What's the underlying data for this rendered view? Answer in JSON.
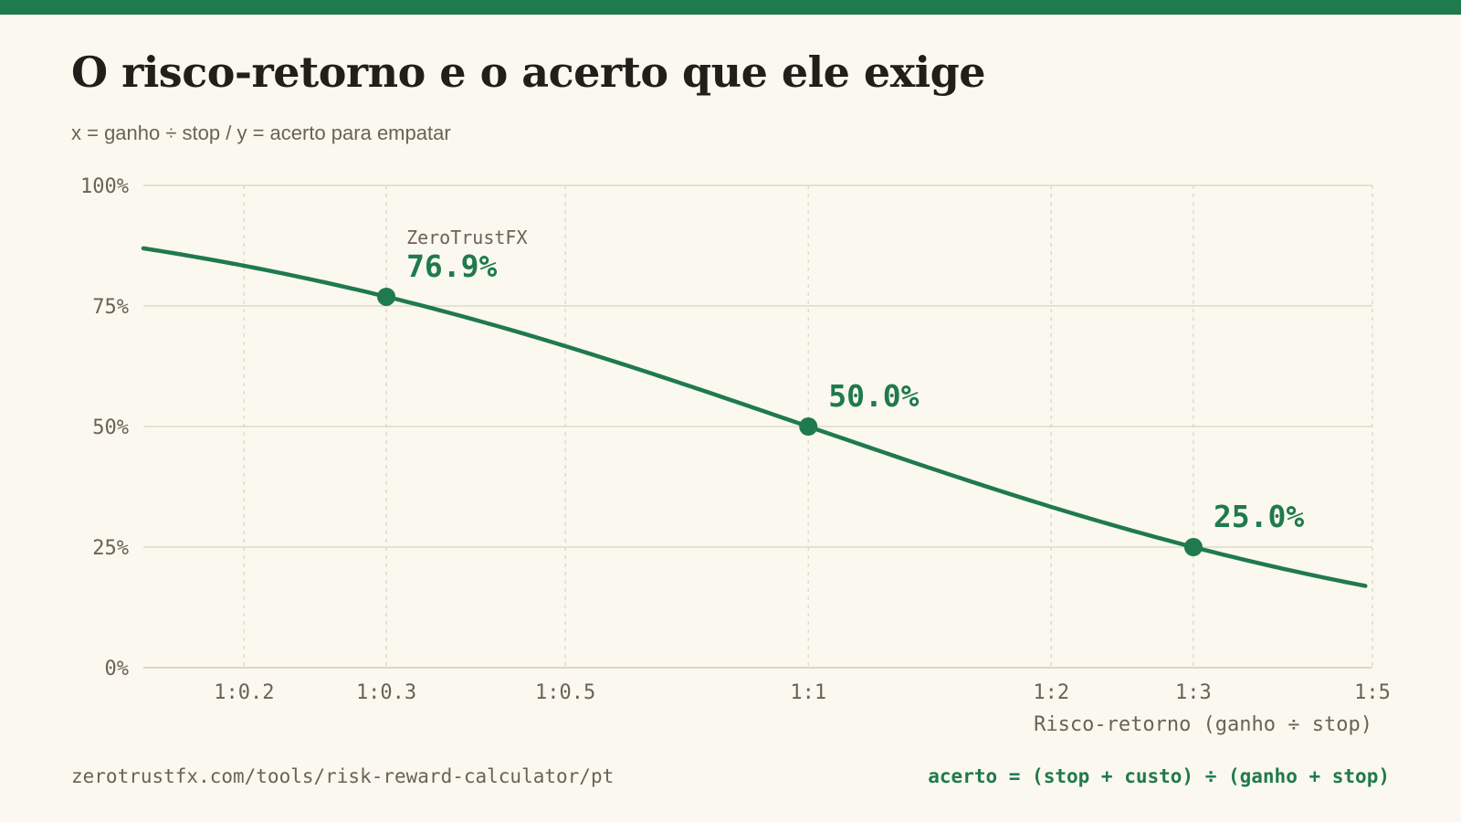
{
  "header": {
    "title": "O risco-retorno e o acerto que ele exige",
    "subtitle": "x = ganho ÷ stop / y = acerto para empatar"
  },
  "colors": {
    "accent": "#1f7a4d",
    "background": "#fbf8ef",
    "grid": "#d9d4c1",
    "text": "#221f1a",
    "muted": "#6b6256"
  },
  "chart_data": {
    "type": "line",
    "title": "",
    "xlabel": "Risco-retorno (ganho ÷ stop)",
    "ylabel": "",
    "x_scale": "log",
    "xlim": [
      0.15,
      5
    ],
    "ylim": [
      0,
      100
    ],
    "x_ticks": [
      {
        "value": 0.2,
        "label": "1:0.2"
      },
      {
        "value": 0.3,
        "label": "1:0.3"
      },
      {
        "value": 0.5,
        "label": "1:0.5"
      },
      {
        "value": 1,
        "label": "1:1"
      },
      {
        "value": 2,
        "label": "1:2"
      },
      {
        "value": 3,
        "label": "1:3"
      },
      {
        "value": 5,
        "label": "1:5"
      }
    ],
    "y_ticks": [
      {
        "value": 0,
        "label": "0%"
      },
      {
        "value": 25,
        "label": "25%"
      },
      {
        "value": 50,
        "label": "50%"
      },
      {
        "value": 75,
        "label": "75%"
      },
      {
        "value": 100,
        "label": "100%"
      }
    ],
    "grid": true,
    "series": [
      {
        "points": [
          [
            0.15,
            87.0
          ],
          [
            0.2,
            83.3
          ],
          [
            0.3,
            76.9
          ],
          [
            0.5,
            66.7
          ],
          [
            0.75,
            57.1
          ],
          [
            1,
            50.0
          ],
          [
            1.5,
            40.0
          ],
          [
            2,
            33.3
          ],
          [
            3,
            25.0
          ],
          [
            4,
            20.0
          ],
          [
            4.9,
            16.9
          ]
        ]
      }
    ],
    "highlights": [
      {
        "x": 0.3,
        "y": 76.9,
        "label": "76.9%",
        "caption": "ZeroTrustFX"
      },
      {
        "x": 1,
        "y": 50.0,
        "label": "50.0%",
        "caption": ""
      },
      {
        "x": 3,
        "y": 25.0,
        "label": "25.0%",
        "caption": ""
      }
    ]
  },
  "footer": {
    "url": "zerotrustfx.com/tools/risk-reward-calculator/pt",
    "formula": "acerto = (stop + custo) ÷ (ganho + stop)"
  }
}
